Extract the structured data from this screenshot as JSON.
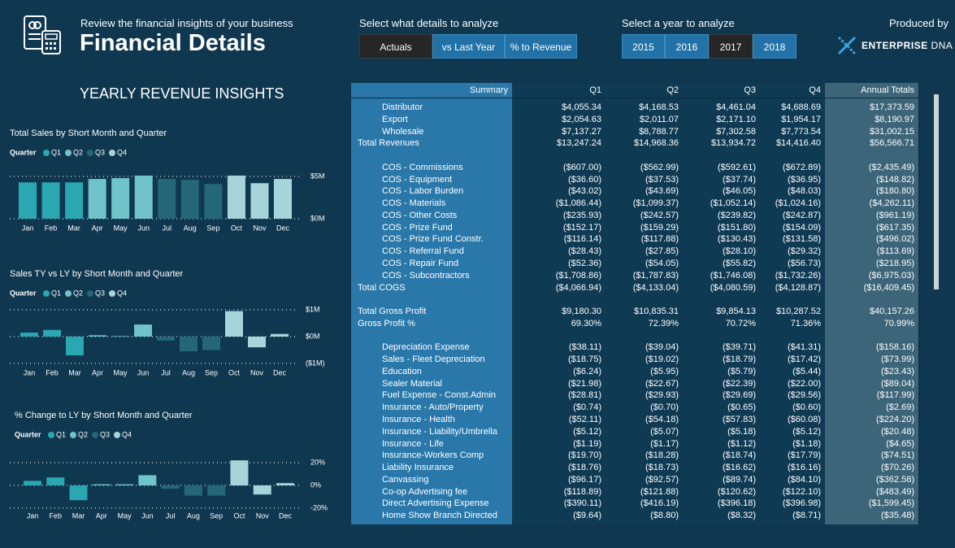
{
  "header": {
    "subtitle": "Review the financial insights of your business",
    "title": "Financial Details"
  },
  "details_selector": {
    "label": "Select what details to analyze",
    "options": [
      "Actuals",
      "vs Last Year",
      "% to Revenue"
    ],
    "selected": 0
  },
  "year_selector": {
    "label": "Select a year to analyze",
    "options": [
      "2015",
      "2016",
      "2017",
      "2018"
    ],
    "selected": 2
  },
  "producer": {
    "label": "Produced by",
    "brand": "ENTERPRISE",
    "brand_suffix": "DNA"
  },
  "insights_title": "YEARLY REVENUE INSIGHTS",
  "chart_data": [
    {
      "type": "bar",
      "title": "Total Sales by Short Month and Quarter",
      "legend_title": "Quarter",
      "categories": [
        "Jan",
        "Feb",
        "Mar",
        "Apr",
        "May",
        "Jun",
        "Jul",
        "Aug",
        "Sep",
        "Oct",
        "Nov",
        "Dec"
      ],
      "series": [
        {
          "name": "Q1",
          "color": "#2aa7b0",
          "values": [
            4.3,
            4.3,
            4.3,
            null,
            null,
            null,
            null,
            null,
            null,
            null,
            null,
            null
          ]
        },
        {
          "name": "Q2",
          "color": "#6fc3c9",
          "values": [
            null,
            null,
            null,
            4.7,
            4.8,
            5.1,
            null,
            null,
            null,
            null,
            null,
            null
          ]
        },
        {
          "name": "Q3",
          "color": "#246777",
          "values": [
            null,
            null,
            null,
            null,
            null,
            null,
            4.7,
            4.6,
            4.1,
            null,
            null,
            null
          ]
        },
        {
          "name": "Q4",
          "color": "#a6d4d8",
          "values": [
            null,
            null,
            null,
            null,
            null,
            null,
            null,
            null,
            null,
            5.1,
            4.2,
            4.7
          ]
        }
      ],
      "ylim": [
        0,
        5.5
      ],
      "yticks": [
        {
          "value": 5,
          "label": "$5M"
        },
        {
          "value": 0,
          "label": "$0M"
        }
      ]
    },
    {
      "type": "bar",
      "title": "Sales TY vs LY by Short Month and Quarter",
      "legend_title": "Quarter",
      "categories": [
        "Jan",
        "Feb",
        "Mar",
        "Apr",
        "May",
        "Jun",
        "Jul",
        "Aug",
        "Sep",
        "Oct",
        "Nov",
        "Dec"
      ],
      "series": [
        {
          "name": "Q1",
          "color": "#2aa7b0",
          "values": [
            0.15,
            0.25,
            -0.7,
            null,
            null,
            null,
            null,
            null,
            null,
            null,
            null,
            null
          ]
        },
        {
          "name": "Q2",
          "color": "#6fc3c9",
          "values": [
            null,
            null,
            null,
            0.05,
            0.02,
            0.45,
            null,
            null,
            null,
            null,
            null,
            null
          ]
        },
        {
          "name": "Q3",
          "color": "#246777",
          "values": [
            null,
            null,
            null,
            null,
            null,
            null,
            -0.15,
            -0.55,
            -0.5,
            null,
            null,
            null
          ]
        },
        {
          "name": "Q4",
          "color": "#a6d4d8",
          "values": [
            null,
            null,
            null,
            null,
            null,
            null,
            null,
            null,
            null,
            0.95,
            -0.4,
            0.1
          ]
        }
      ],
      "ylim": [
        -1,
        1
      ],
      "yticks": [
        {
          "value": 1,
          "label": "$1M"
        },
        {
          "value": 0,
          "label": "$0M"
        },
        {
          "value": -1,
          "label": "($1M)"
        }
      ]
    },
    {
      "type": "bar",
      "title": "% Change to LY by Short Month and Quarter",
      "legend_title": "Quarter",
      "categories": [
        "Jan",
        "Feb",
        "Mar",
        "Apr",
        "May",
        "Jun",
        "Jul",
        "Aug",
        "Sep",
        "Oct",
        "Nov",
        "Dec"
      ],
      "series": [
        {
          "name": "Q1",
          "color": "#2aa7b0",
          "values": [
            4,
            7,
            -13,
            null,
            null,
            null,
            null,
            null,
            null,
            null,
            null,
            null
          ]
        },
        {
          "name": "Q2",
          "color": "#6fc3c9",
          "values": [
            null,
            null,
            null,
            1,
            1,
            9,
            null,
            null,
            null,
            null,
            null,
            null
          ]
        },
        {
          "name": "Q3",
          "color": "#246777",
          "values": [
            null,
            null,
            null,
            null,
            null,
            null,
            -3,
            -9,
            -9,
            null,
            null,
            null
          ]
        },
        {
          "name": "Q4",
          "color": "#a6d4d8",
          "values": [
            null,
            null,
            null,
            null,
            null,
            null,
            null,
            null,
            null,
            22,
            -8,
            2
          ]
        }
      ],
      "ylim": [
        -20,
        25
      ],
      "yticks": [
        {
          "value": 20,
          "label": "20%"
        },
        {
          "value": 0,
          "label": "0%"
        },
        {
          "value": -20,
          "label": "-20%"
        }
      ]
    }
  ],
  "table": {
    "columns": [
      "Summary",
      "Q1",
      "Q2",
      "Q3",
      "Q4",
      "Annual Totals"
    ],
    "sections": [
      [
        {
          "label": "Distributor",
          "cells": [
            "$4,055.34",
            "$4,168.53",
            "$4,461.04",
            "$4,688.69",
            "$17,373.59"
          ]
        },
        {
          "label": "Export",
          "cells": [
            "$2,054.63",
            "$2,011.07",
            "$2,171.10",
            "$1,954.17",
            "$8,190.97"
          ]
        },
        {
          "label": "Wholesale",
          "cells": [
            "$7,137.27",
            "$8,788.77",
            "$7,302.58",
            "$7,773.54",
            "$31,002.15"
          ]
        },
        {
          "label": "Total Revenues",
          "cells": [
            "$13,247.24",
            "$14,968.36",
            "$13,934.72",
            "$14,416.40",
            "$56,566.71"
          ]
        }
      ],
      [
        {
          "label": "COS - Commissions",
          "cells": [
            "($607.00)",
            "($562.99)",
            "($592.61)",
            "($672.89)",
            "($2,435.49)"
          ]
        },
        {
          "label": "COS - Equipment",
          "cells": [
            "($36.60)",
            "($37.53)",
            "($37.74)",
            "($36.95)",
            "($148.82)"
          ]
        },
        {
          "label": "COS - Labor Burden",
          "cells": [
            "($43.02)",
            "($43.69)",
            "($46.05)",
            "($48.03)",
            "($180.80)"
          ]
        },
        {
          "label": "COS - Materials",
          "cells": [
            "($1,086.44)",
            "($1,099.37)",
            "($1,052.14)",
            "($1,024.16)",
            "($4,262.11)"
          ]
        },
        {
          "label": "COS - Other Costs",
          "cells": [
            "($235.93)",
            "($242.57)",
            "($239.82)",
            "($242.87)",
            "($961.19)"
          ]
        },
        {
          "label": "COS - Prize Fund",
          "cells": [
            "($152.17)",
            "($159.29)",
            "($151.80)",
            "($154.09)",
            "($617.35)"
          ]
        },
        {
          "label": "COS - Prize Fund Constr.",
          "cells": [
            "($116.14)",
            "($117.88)",
            "($130.43)",
            "($131.58)",
            "($496.02)"
          ]
        },
        {
          "label": "COS - Referral Fund",
          "cells": [
            "($28.43)",
            "($27.85)",
            "($28.10)",
            "($29.32)",
            "($113.69)"
          ]
        },
        {
          "label": "COS - Repair Fund",
          "cells": [
            "($52.36)",
            "($54.05)",
            "($55.82)",
            "($56.73)",
            "($218.95)"
          ]
        },
        {
          "label": "COS - Subcontractors",
          "cells": [
            "($1,708.86)",
            "($1,787.83)",
            "($1,746.08)",
            "($1,732.26)",
            "($6,975.03)"
          ]
        },
        {
          "label": "Total COGS",
          "cells": [
            "($4,066.94)",
            "($4,133.04)",
            "($4,080.59)",
            "($4,128.87)",
            "($16,409.45)"
          ]
        }
      ],
      [
        {
          "label": "Total Gross Profit",
          "cells": [
            "$9,180.30",
            "$10,835.31",
            "$9,854.13",
            "$10,287.52",
            "$40,157.26"
          ]
        },
        {
          "label": "Gross Profit %",
          "cells": [
            "69.30%",
            "72.39%",
            "70.72%",
            "71.36%",
            "70.99%"
          ]
        }
      ],
      [
        {
          "label": "Depreciation Expense",
          "cells": [
            "($38.11)",
            "($39.04)",
            "($39.71)",
            "($41.31)",
            "($158.16)"
          ]
        },
        {
          "label": "Sales - Fleet Depreciation",
          "cells": [
            "($18.75)",
            "($19.02)",
            "($18.79)",
            "($17.42)",
            "($73.99)"
          ]
        },
        {
          "label": "Education",
          "cells": [
            "($6.24)",
            "($5.95)",
            "($5.79)",
            "($5.44)",
            "($23.43)"
          ]
        },
        {
          "label": "Sealer Material",
          "cells": [
            "($21.98)",
            "($22.67)",
            "($22.39)",
            "($22.00)",
            "($89.04)"
          ]
        },
        {
          "label": "Fuel Expense - Const.Admin",
          "cells": [
            "($28.81)",
            "($29.93)",
            "($29.69)",
            "($29.56)",
            "($117.99)"
          ]
        },
        {
          "label": "Insurance - Auto/Property",
          "cells": [
            "($0.74)",
            "($0.70)",
            "($0.65)",
            "($0.60)",
            "($2.69)"
          ]
        },
        {
          "label": "Insurance - Health",
          "cells": [
            "($52.11)",
            "($54.18)",
            "($57.83)",
            "($60.08)",
            "($224.20)"
          ]
        },
        {
          "label": "Insurance - Liability/Umbrella",
          "cells": [
            "($5.12)",
            "($5.07)",
            "($5.18)",
            "($5.12)",
            "($20.48)"
          ]
        },
        {
          "label": "Insurance - Life",
          "cells": [
            "($1.19)",
            "($1.17)",
            "($1.12)",
            "($1.18)",
            "($4.65)"
          ]
        },
        {
          "label": "Insurance-Workers Comp",
          "cells": [
            "($19.70)",
            "($18.28)",
            "($18.74)",
            "($17.79)",
            "($74.51)"
          ]
        },
        {
          "label": "Liability Insurance",
          "cells": [
            "($18.76)",
            "($18.73)",
            "($16.62)",
            "($16.16)",
            "($70.26)"
          ]
        },
        {
          "label": "Canvassing",
          "cells": [
            "($96.17)",
            "($92.57)",
            "($89.74)",
            "($84.10)",
            "($362.58)"
          ]
        },
        {
          "label": "Co-op Advertising fee",
          "cells": [
            "($118.89)",
            "($121.88)",
            "($120.62)",
            "($122.10)",
            "($483.49)"
          ]
        },
        {
          "label": "Direct Advertising Expense",
          "cells": [
            "($390.11)",
            "($416.19)",
            "($396.18)",
            "($396.98)",
            "($1,599.45)"
          ]
        },
        {
          "label": "Home Show Branch Directed",
          "cells": [
            "($9.64)",
            "($8.80)",
            "($8.32)",
            "($8.71)",
            "($35.48)"
          ]
        }
      ]
    ]
  }
}
